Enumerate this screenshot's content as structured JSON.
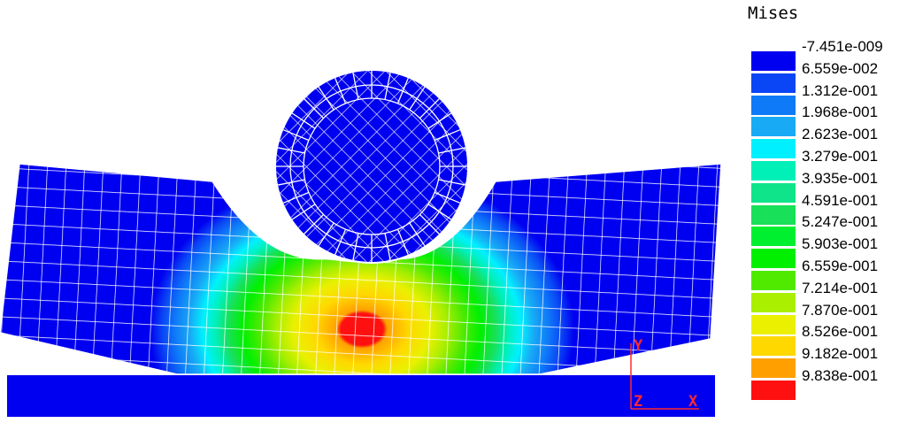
{
  "legend": {
    "title": "Mises",
    "labels": [
      "-7.451e-009",
      "6.559e-002",
      "1.312e-001",
      "1.968e-001",
      "2.623e-001",
      "3.279e-001",
      "3.935e-001",
      "4.591e-001",
      "5.247e-001",
      "5.903e-001",
      "6.559e-001",
      "7.214e-001",
      "7.870e-001",
      "8.526e-001",
      "9.182e-001",
      "9.838e-001"
    ],
    "colors": [
      "#0000f0",
      "#0a46f5",
      "#0f7af8",
      "#18aaf5",
      "#00f0ff",
      "#00f0b8",
      "#10e48a",
      "#18e058",
      "#00f030",
      "#00f000",
      "#50ea00",
      "#aaee00",
      "#eaf000",
      "#ffd800",
      "#ffa000",
      "#ff1010"
    ]
  },
  "triad": {
    "y": "Y",
    "z": "Z",
    "x": "X"
  },
  "colors": {
    "mesh_line": "#ffffff",
    "base_plate": "#0000f0",
    "axis": "#ff2a2a"
  }
}
